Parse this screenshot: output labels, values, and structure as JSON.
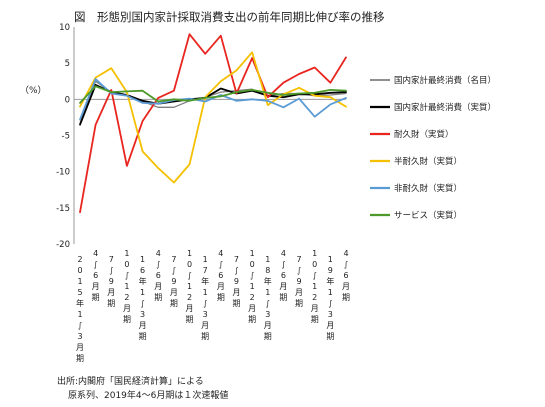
{
  "chart_data": {
    "type": "line",
    "title": "図　形態別国内家計採取消費支出の前年同期比伸び率の推移",
    "ylabel": "（%）",
    "xlabel": "",
    "ylim": [
      -20,
      10
    ],
    "yticks": [
      10,
      5,
      0,
      -5,
      -10,
      -15,
      -20
    ],
    "grid": false,
    "legend_position": "right",
    "categories": [
      "2015年1〜3月期",
      "4〜6月期",
      "7〜9月期",
      "10〜12月期",
      "16年1〜3月期",
      "4〜6月期",
      "7〜9月期",
      "10〜12月期",
      "17年1〜3月期",
      "4〜6月期",
      "7〜9月期",
      "10〜12月期",
      "18年1〜3月期",
      "4〜6月期",
      "7〜9月期",
      "10〜12月期",
      "19年1〜3月期",
      "4〜6月期"
    ],
    "series": [
      {
        "name": "国内家計最終消費（名目）",
        "color": "#7f7f7f",
        "width": 1.3,
        "values": [
          -3.3,
          2.5,
          1.0,
          0.5,
          -0.3,
          -1.1,
          -1.1,
          -0.2,
          0.3,
          1.0,
          1.2,
          1.4,
          0.5,
          0.8,
          0.8,
          0.5,
          0.6,
          0.8
        ]
      },
      {
        "name": "国内家計最終消費（実質）",
        "color": "#000000",
        "width": 1.8,
        "values": [
          -3.5,
          2.0,
          1.0,
          0.6,
          -0.2,
          -0.6,
          -0.3,
          0.0,
          0.2,
          1.5,
          0.8,
          1.2,
          0.5,
          0.3,
          0.7,
          0.7,
          0.9,
          1.0
        ]
      },
      {
        "name": "耐久財（実質）",
        "color": "#e8261f",
        "width": 1.8,
        "values": [
          -15.6,
          -3.5,
          1.3,
          -9.2,
          -3.0,
          0.2,
          1.2,
          9.0,
          6.3,
          8.8,
          0.8,
          5.7,
          0.3,
          2.3,
          3.5,
          4.4,
          2.3,
          5.8
        ]
      },
      {
        "name": "半耐久財（実質）",
        "color": "#f5c000",
        "width": 1.8,
        "values": [
          -1.0,
          3.0,
          4.3,
          1.0,
          -7.2,
          -9.5,
          -11.5,
          -9.0,
          0.3,
          2.5,
          4.0,
          6.5,
          -0.8,
          0.7,
          1.6,
          0.5,
          0.3,
          -1.0
        ]
      },
      {
        "name": "非耐久財（実質）",
        "color": "#5b9bd5",
        "width": 1.8,
        "values": [
          -2.8,
          2.8,
          0.8,
          0.5,
          -0.5,
          -0.6,
          -0.1,
          0.1,
          -0.3,
          0.6,
          -0.2,
          0.0,
          -0.2,
          -1.1,
          0.1,
          -2.4,
          -0.7,
          0.2
        ]
      },
      {
        "name": "サービス（実質）",
        "color": "#4d9a2a",
        "width": 1.8,
        "values": [
          -0.5,
          1.8,
          1.0,
          1.1,
          1.2,
          -0.3,
          0.0,
          -0.2,
          0.2,
          0.4,
          1.0,
          1.3,
          0.9,
          0.6,
          0.8,
          0.9,
          1.3,
          1.2
        ]
      }
    ],
    "source_note": "出所:内閣府「国民経済計算」による",
    "source_note2": "原系列、2019年4〜6月期は１次速報値"
  }
}
